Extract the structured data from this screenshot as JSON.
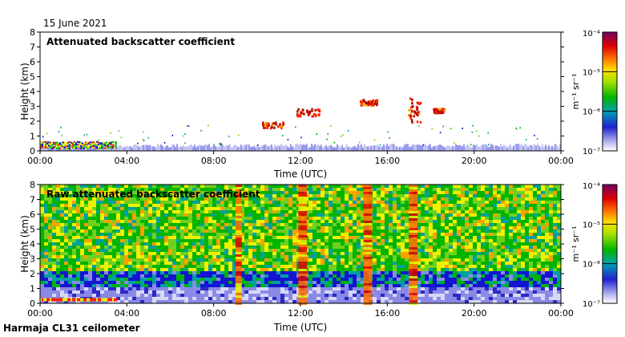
{
  "date": "15 June 2021",
  "footer": "Harmaja CL31 ceilometer",
  "colors": {
    "scale": [
      "#ffffff",
      "#d8d8f4",
      "#8a8ae6",
      "#2a2ac8",
      "#1414d2",
      "#00a0a0",
      "#00b400",
      "#70d020",
      "#f0f000",
      "#ffa000",
      "#ff2000",
      "#b40000",
      "#800060",
      "#5a0050"
    ],
    "background": "#ffffff",
    "frame": "#000000"
  },
  "chart_data": [
    {
      "type": "heatmap",
      "title": "Attenuated backscatter coefficient",
      "xlabel": "Time (UTC)",
      "ylabel": "Height (km)",
      "x_ticks": [
        "00:00",
        "04:00",
        "08:00",
        "12:00",
        "16:00",
        "20:00",
        "00:00"
      ],
      "x_range_hours": [
        0,
        24
      ],
      "y_ticks": [
        "0",
        "1",
        "2",
        "3",
        "4",
        "5",
        "6",
        "7",
        "8"
      ],
      "ylim": [
        0,
        8
      ],
      "colorbar": {
        "label": "m⁻¹ sr⁻¹",
        "scale": "log",
        "range": [
          1e-07,
          0.0001
        ],
        "tick_labels": [
          "10⁻⁴",
          "10⁻⁵",
          "10⁻⁶",
          "10⁻⁷"
        ]
      },
      "features": [
        {
          "kind": "surface_layer",
          "t_start": 0,
          "t_end": 24,
          "top_km": 0.35
        },
        {
          "kind": "cloud",
          "t_start": 10.2,
          "t_end": 11.2,
          "bottom_km": 1.6,
          "top_km": 2.0
        },
        {
          "kind": "cloud",
          "t_start": 11.8,
          "t_end": 12.9,
          "bottom_km": 2.4,
          "top_km": 2.9
        },
        {
          "kind": "cloud",
          "t_start": 14.7,
          "t_end": 15.5,
          "bottom_km": 3.1,
          "top_km": 3.5
        },
        {
          "kind": "cloud",
          "t_start": 16.9,
          "t_end": 17.5,
          "bottom_km": 2.0,
          "top_km": 3.6
        },
        {
          "kind": "cloud",
          "t_start": 18.1,
          "t_end": 18.6,
          "bottom_km": 2.6,
          "top_km": 2.9
        }
      ]
    },
    {
      "type": "heatmap",
      "title": "Raw attenuated backscatter coefficient",
      "xlabel": "Time (UTC)",
      "ylabel": "Height (km)",
      "x_ticks": [
        "00:00",
        "04:00",
        "08:00",
        "12:00",
        "16:00",
        "20:00",
        "00:00"
      ],
      "x_range_hours": [
        0,
        24
      ],
      "y_ticks": [
        "0",
        "1",
        "2",
        "3",
        "4",
        "5",
        "6",
        "7",
        "8"
      ],
      "ylim": [
        0,
        8
      ],
      "colorbar": {
        "label": "m⁻¹ sr⁻¹",
        "scale": "log",
        "range": [
          1e-07,
          0.0001
        ],
        "tick_labels": [
          "10⁻⁴",
          "10⁻⁵",
          "10⁻⁶",
          "10⁻⁷"
        ]
      },
      "features": [
        {
          "kind": "noise_background",
          "t_start": 0,
          "t_end": 24,
          "bottom_km": 1.5,
          "top_km": 8
        },
        {
          "kind": "surface_layer",
          "t_start": 0,
          "t_end": 24,
          "top_km": 1.2
        },
        {
          "kind": "cloud_column",
          "t_start": 9.0,
          "t_end": 9.3
        },
        {
          "kind": "cloud_column",
          "t_start": 11.9,
          "t_end": 12.3
        },
        {
          "kind": "cloud_column",
          "t_start": 14.9,
          "t_end": 15.3
        },
        {
          "kind": "cloud_column",
          "t_start": 17.0,
          "t_end": 17.4
        }
      ]
    }
  ]
}
